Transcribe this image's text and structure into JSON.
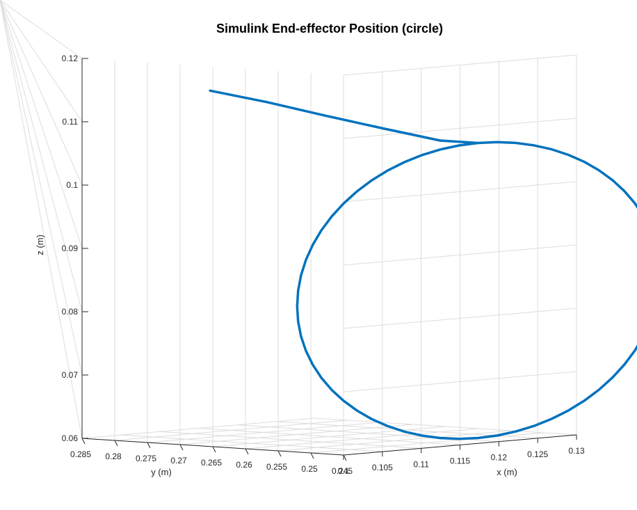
{
  "chart_data": {
    "type": "line",
    "projection": "3d",
    "title": "Simulink End-effector Position (circle)",
    "xlabel": "x (m)",
    "ylabel": "y (m)",
    "zlabel": "z (m)",
    "xlim": [
      0.1,
      0.13
    ],
    "ylim": [
      0.245,
      0.285
    ],
    "zlim": [
      0.06,
      0.12
    ],
    "x_ticks": [
      "0.1",
      "0.105",
      "0.11",
      "0.115",
      "0.12",
      "0.125",
      "0.13"
    ],
    "y_ticks": [
      "0.285",
      "0.28",
      "0.275",
      "0.27",
      "0.265",
      "0.26",
      "0.255",
      "0.25",
      "0.245"
    ],
    "z_ticks": [
      "0.06",
      "0.07",
      "0.08",
      "0.09",
      "0.1",
      "0.11",
      "0.12"
    ],
    "grid": true,
    "line_color": "#0072bd",
    "series": [
      {
        "approach_path": {
          "x": [
            0.1,
            0.1025,
            0.105,
            0.1075,
            0.11
          ],
          "y": [
            0.2654,
            0.2596,
            0.2538,
            0.2479,
            0.2421
          ],
          "z": [
            0.1162,
            0.1145,
            0.1125,
            0.1106,
            0.1088
          ]
        },
        "circle": {
          "center": {
            "x": 0.11,
            "y": 0.2363,
            "z": 0.0855
          },
          "radius": 0.0233,
          "plane": "x-z"
        }
      }
    ]
  }
}
